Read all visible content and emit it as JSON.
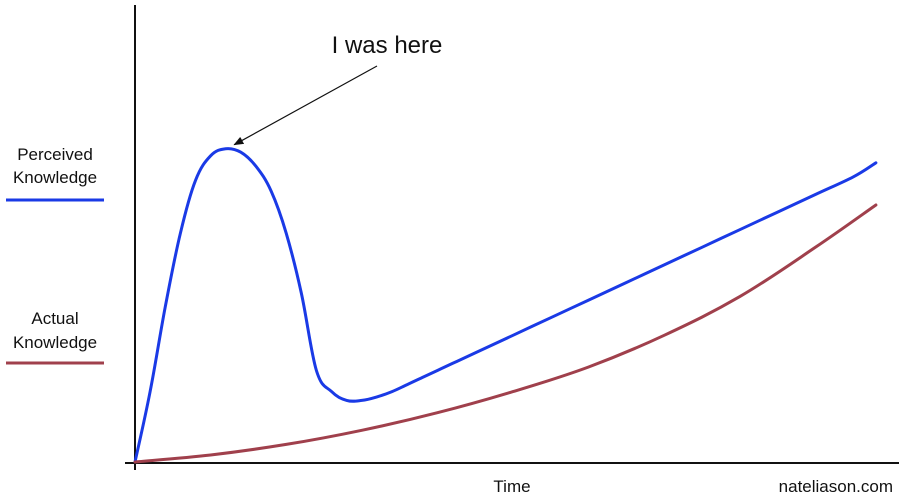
{
  "chart_data": {
    "type": "line",
    "title": "",
    "xlabel": "Time",
    "ylabel": "",
    "xlim": [
      0,
      100
    ],
    "ylim": [
      0,
      100
    ],
    "grid": false,
    "legend_position": "left",
    "series": [
      {
        "name": "Perceived Knowledge",
        "color": "#1a3ae6",
        "x": [
          0,
          2,
          4,
          6,
          8,
          10,
          12,
          14,
          16,
          18,
          20,
          22,
          24,
          26,
          28,
          30,
          32,
          34,
          36,
          38,
          40,
          42,
          45,
          50,
          55,
          60,
          65,
          70,
          75,
          80,
          85,
          90,
          95,
          98
        ],
        "y": [
          0,
          20,
          44,
          65,
          80,
          87,
          89,
          88,
          84,
          77,
          65,
          48,
          26,
          20,
          17.5,
          17.5,
          18.5,
          20,
          22,
          24,
          26,
          28,
          31,
          36,
          41,
          46,
          51,
          56,
          61,
          66,
          71,
          76,
          81,
          85
        ]
      },
      {
        "name": "Actual Knowledge",
        "color": "#a0404c",
        "x": [
          0,
          10,
          20,
          30,
          40,
          50,
          60,
          70,
          80,
          90,
          98
        ],
        "y": [
          0,
          2,
          5,
          9,
          14,
          20,
          27,
          36,
          47,
          61,
          73
        ]
      }
    ],
    "annotations": [
      {
        "text": "I was here",
        "x": 13,
        "y": 89
      }
    ]
  },
  "labels": {
    "legend_perceived": [
      "Perceived",
      "Knowledge"
    ],
    "legend_actual": [
      "Actual",
      "Knowledge"
    ],
    "x_axis": "Time",
    "annotation": "I was here",
    "watermark": "nateliason.com"
  }
}
